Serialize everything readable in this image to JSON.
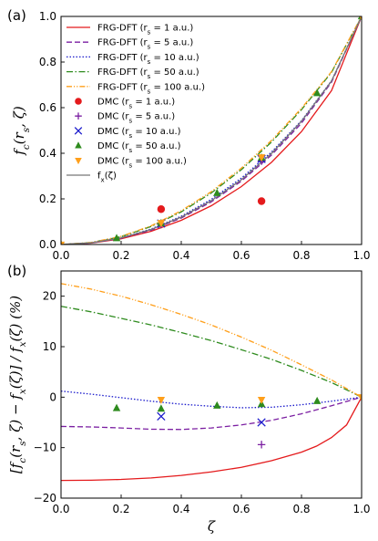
{
  "chart_data": [
    {
      "type": "line",
      "panel_label": "(a)",
      "xlabel": "",
      "ylabel": "f_c(r_s, ζ)",
      "xlim": [
        0,
        1
      ],
      "ylim": [
        0,
        1
      ],
      "xticks": [
        "0.0",
        "0.2",
        "0.4",
        "0.6",
        "0.8",
        "1.0"
      ],
      "yticks": [
        "0.0",
        "0.2",
        "0.4",
        "0.6",
        "0.8",
        "1.0"
      ],
      "legend_position": "top-left",
      "legend": [
        "FRG-DFT (r_s = 1 a.u.)",
        "FRG-DFT (r_s = 5 a.u.)",
        "FRG-DFT (r_s = 10 a.u.)",
        "FRG-DFT (r_s = 50 a.u.)",
        "FRG-DFT (r_s = 100 a.u.)",
        "DMC (r_s = 1 a.u.)",
        "DMC (r_s = 5 a.u.)",
        "DMC (r_s = 10 a.u.)",
        "DMC (r_s = 50 a.u.)",
        "DMC (r_s = 100 a.u.)",
        "f_x(ζ)"
      ],
      "lines": [
        {
          "name": "FRG-DFT rs=1",
          "color": "#e41a1c",
          "dash": "solid",
          "x": [
            0,
            0.1,
            0.2,
            0.3,
            0.4,
            0.5,
            0.6,
            0.7,
            0.8,
            0.9,
            1.0
          ],
          "y": [
            0,
            0.006,
            0.025,
            0.058,
            0.106,
            0.17,
            0.254,
            0.36,
            0.495,
            0.675,
            1.0
          ]
        },
        {
          "name": "FRG-DFT rs=5",
          "color": "#7b1fa2",
          "dash": "dashed",
          "x": [
            0,
            0.1,
            0.2,
            0.3,
            0.4,
            0.5,
            0.6,
            0.7,
            0.8,
            0.9,
            1.0
          ],
          "y": [
            0,
            0.0068,
            0.0274,
            0.063,
            0.116,
            0.187,
            0.278,
            0.392,
            0.532,
            0.712,
            1.0
          ]
        },
        {
          "name": "FRG-DFT rs=10",
          "color": "#1a1acc",
          "dash": "dotted",
          "x": [
            0,
            0.1,
            0.2,
            0.3,
            0.4,
            0.5,
            0.6,
            0.7,
            0.8,
            0.9,
            1.0
          ],
          "y": [
            0,
            0.0073,
            0.0295,
            0.068,
            0.124,
            0.198,
            0.291,
            0.405,
            0.543,
            0.718,
            1.0
          ]
        },
        {
          "name": "FRG-DFT rs=50",
          "color": "#2e8b1e",
          "dash": "dashdot",
          "x": [
            0,
            0.1,
            0.2,
            0.3,
            0.4,
            0.5,
            0.6,
            0.7,
            0.8,
            0.9,
            1.0
          ],
          "y": [
            0,
            0.0085,
            0.0345,
            0.079,
            0.143,
            0.226,
            0.328,
            0.449,
            0.591,
            0.755,
            1.0
          ]
        },
        {
          "name": "FRG-DFT rs=100",
          "color": "#ff9f1a",
          "dash": "dashdotdot",
          "x": [
            0,
            0.1,
            0.2,
            0.3,
            0.4,
            0.5,
            0.6,
            0.7,
            0.8,
            0.9,
            1.0
          ],
          "y": [
            0,
            0.0089,
            0.0358,
            0.082,
            0.148,
            0.232,
            0.335,
            0.456,
            0.597,
            0.758,
            1.0
          ]
        },
        {
          "name": "f_x",
          "color": "#777777",
          "dash": "solid",
          "x": [
            0,
            0.1,
            0.2,
            0.3,
            0.4,
            0.5,
            0.6,
            0.7,
            0.8,
            0.9,
            1.0
          ],
          "y": [
            0,
            0.0072,
            0.0289,
            0.066,
            0.12,
            0.192,
            0.284,
            0.399,
            0.54,
            0.717,
            1.0
          ]
        }
      ],
      "markers": [
        {
          "name": "DMC rs=1",
          "color": "#e41a1c",
          "shape": "circle",
          "x": [
            0.333,
            0.667
          ],
          "y": [
            0.155,
            0.19
          ]
        },
        {
          "name": "DMC rs=5",
          "color": "#7b1fa2",
          "shape": "plus",
          "x": [
            0.333,
            0.667
          ],
          "y": [
            0.088,
            0.366
          ]
        },
        {
          "name": "DMC rs=10",
          "color": "#1a1acc",
          "shape": "x",
          "x": [
            0.333,
            0.667
          ],
          "y": [
            0.092,
            0.375
          ]
        },
        {
          "name": "DMC rs=50",
          "color": "#2e8b1e",
          "shape": "triangle-up",
          "x": [
            0.0,
            0.185,
            0.333,
            0.519,
            0.667,
            0.852,
            1.0
          ],
          "y": [
            0,
            0.027,
            0.093,
            0.225,
            0.38,
            0.663,
            1.0
          ]
        },
        {
          "name": "DMC rs=100",
          "color": "#ff9f1a",
          "shape": "triangle-down",
          "x": [
            0.0,
            0.333,
            0.667,
            1.0
          ],
          "y": [
            0,
            0.095,
            0.383,
            1.0
          ]
        }
      ]
    },
    {
      "type": "line",
      "panel_label": "(b)",
      "xlabel": "ζ",
      "ylabel": "[f_c(r_s, ζ) − f_x(ζ)] / f_x(ζ) (%)",
      "xlim": [
        0,
        1
      ],
      "ylim": [
        -20,
        25
      ],
      "xticks": [
        "0.0",
        "0.2",
        "0.4",
        "0.6",
        "0.8",
        "1.0"
      ],
      "yticks": [
        "−20",
        "−10",
        "0",
        "10",
        "20"
      ],
      "lines": [
        {
          "name": "FRG-DFT rs=1",
          "color": "#e41a1c",
          "dash": "solid",
          "x": [
            0,
            0.1,
            0.2,
            0.3,
            0.4,
            0.5,
            0.6,
            0.7,
            0.8,
            0.85,
            0.9,
            0.95,
            1.0
          ],
          "y": [
            -16.5,
            -16.45,
            -16.3,
            -16.0,
            -15.5,
            -14.8,
            -13.9,
            -12.6,
            -10.9,
            -9.7,
            -8.0,
            -5.5,
            0
          ]
        },
        {
          "name": "FRG-DFT rs=5",
          "color": "#7b1fa2",
          "dash": "dashed",
          "x": [
            0,
            0.1,
            0.2,
            0.3,
            0.4,
            0.5,
            0.6,
            0.7,
            0.8,
            0.9,
            1.0
          ],
          "y": [
            -5.8,
            -5.9,
            -6.1,
            -6.35,
            -6.4,
            -6.1,
            -5.5,
            -4.6,
            -3.3,
            -1.7,
            0
          ]
        },
        {
          "name": "FRG-DFT rs=10",
          "color": "#1a1acc",
          "dash": "dotted",
          "x": [
            0,
            0.1,
            0.2,
            0.3,
            0.4,
            0.5,
            0.6,
            0.7,
            0.8,
            0.9,
            1.0
          ],
          "y": [
            1.2,
            0.6,
            -0.1,
            -0.8,
            -1.4,
            -1.8,
            -2.1,
            -2.0,
            -1.5,
            -0.8,
            0
          ]
        },
        {
          "name": "FRG-DFT rs=50",
          "color": "#2e8b1e",
          "dash": "dashdot",
          "x": [
            0,
            0.1,
            0.2,
            0.3,
            0.4,
            0.5,
            0.6,
            0.7,
            0.8,
            0.9,
            1.0
          ],
          "y": [
            18.0,
            16.9,
            15.6,
            14.3,
            12.8,
            11.2,
            9.4,
            7.5,
            5.3,
            2.9,
            0
          ]
        },
        {
          "name": "FRG-DFT rs=100",
          "color": "#ff9f1a",
          "dash": "dashdotdot",
          "x": [
            0,
            0.1,
            0.2,
            0.3,
            0.4,
            0.5,
            0.6,
            0.7,
            0.8,
            0.9,
            1.0
          ],
          "y": [
            22.5,
            21.4,
            20.0,
            18.3,
            16.4,
            14.3,
            11.9,
            9.3,
            6.4,
            3.4,
            0
          ]
        }
      ],
      "markers": [
        {
          "name": "DMC rs=5",
          "color": "#7b1fa2",
          "shape": "plus",
          "x": [
            0.667
          ],
          "y": [
            -9.4
          ]
        },
        {
          "name": "DMC rs=10",
          "color": "#1a1acc",
          "shape": "x",
          "x": [
            0.333,
            0.667
          ],
          "y": [
            -3.8,
            -5.0
          ]
        },
        {
          "name": "DMC rs=50",
          "color": "#2e8b1e",
          "shape": "triangle-up",
          "x": [
            0.185,
            0.333,
            0.519,
            0.667,
            0.852
          ],
          "y": [
            -2.2,
            -2.3,
            -1.7,
            -1.4,
            -0.8
          ]
        },
        {
          "name": "DMC rs=100",
          "color": "#ff9f1a",
          "shape": "triangle-down",
          "x": [
            0.333,
            0.667,
            1.0
          ],
          "y": [
            -0.5,
            -0.5,
            0
          ]
        }
      ]
    }
  ]
}
